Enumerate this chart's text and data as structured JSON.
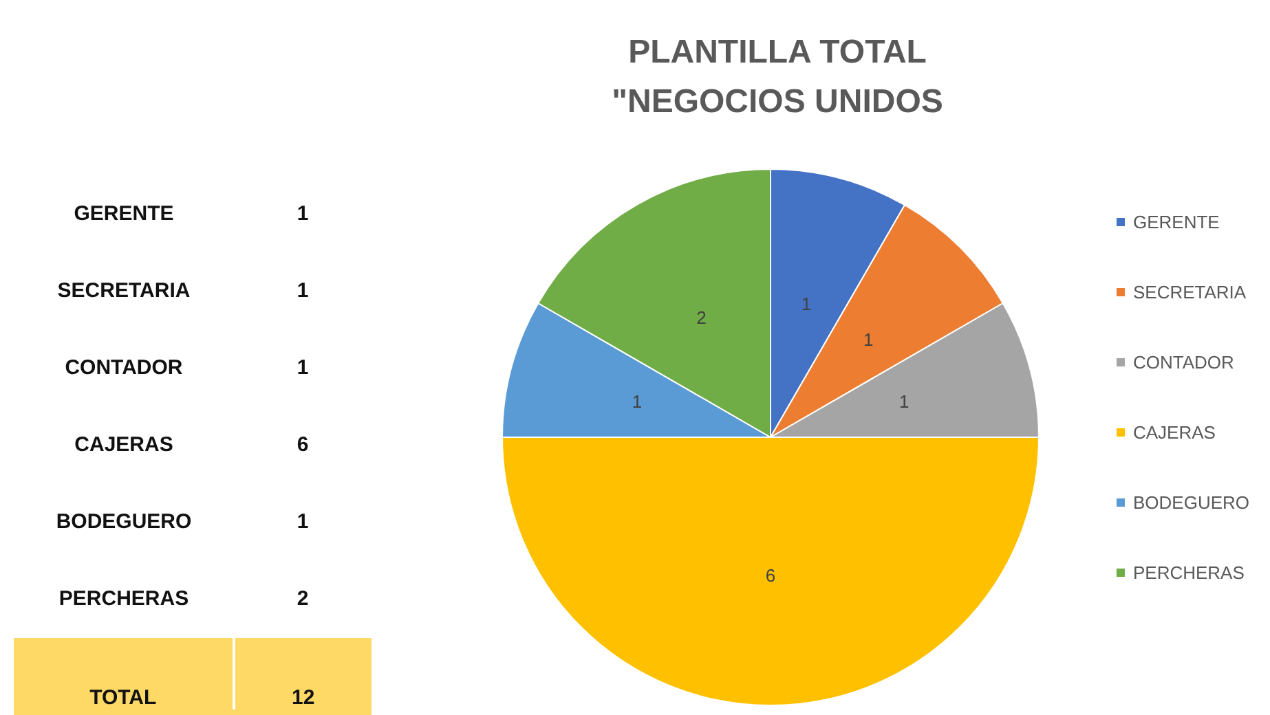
{
  "chart_data": [
    {
      "type": "other",
      "annotations": [
        "GERENTE",
        "1",
        "SECRETARIA",
        "1",
        "CONTADOR",
        "1",
        "CAJERAS",
        "6",
        "BODEGUERO",
        "1",
        "PERCHERAS",
        "2",
        "TOTAL",
        "12"
      ]
    },
    {
      "type": "pie",
      "title": "PLANTILLA TOTAL\n\"NEGOCIOS UNIDOS",
      "categories": [
        "GERENTE",
        "SECRETARIA",
        "CONTADOR",
        "CAJERAS",
        "BODEGUERO",
        "PERCHERAS"
      ],
      "values": [
        1,
        1,
        1,
        6,
        1,
        2
      ],
      "colors": [
        "#4472c4",
        "#ed7d31",
        "#a5a5a5",
        "#ffc000",
        "#5b9bd5",
        "#70ad47"
      ],
      "data_labels": true,
      "legend": "right"
    }
  ]
}
